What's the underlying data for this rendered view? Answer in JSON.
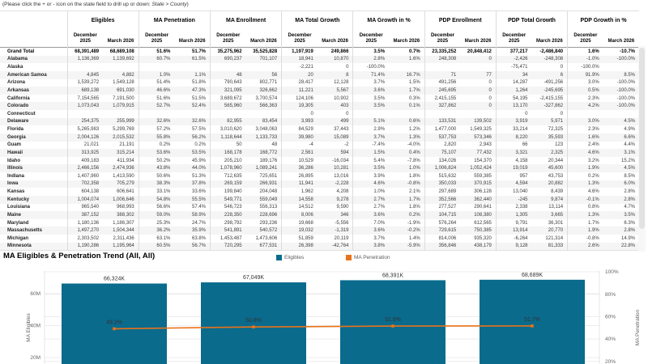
{
  "instruction": {
    "prefix": "(Please click the + or - icon on the state field to drill up or down: ",
    "emphasis": "State > County",
    "suffix": ")"
  },
  "table": {
    "groups": [
      "Eligibles",
      "MA Penetration",
      "MA Enrollment",
      "MA Total Growth",
      "MA Growth in %",
      "PDP Enrollment",
      "PDP Total Growth",
      "PDP Growth in %"
    ],
    "period_columns": [
      "December 2025",
      "March 2026"
    ],
    "rows": [
      {
        "label": "Grand Total",
        "total": true,
        "values": [
          "68,391,489",
          "68,689,108",
          "51.6%",
          "51.7%",
          "35,275,962",
          "35,525,828",
          "1,197,919",
          "249,866",
          "3.5%",
          "0.7%",
          "23,335,252",
          "20,848,412",
          "377,217",
          "-2,486,840",
          "1.6%",
          "-10.7%"
        ]
      },
      {
        "label": "Alabama",
        "values": [
          "1,136,369",
          "1,139,692",
          "60.7%",
          "61.5%",
          "690,237",
          "701,107",
          "18,941",
          "10,870",
          "2.8%",
          "1.6%",
          "248,308",
          "0",
          "-2,426",
          "-248,308",
          "-1.0%",
          "-100.0%"
        ]
      },
      {
        "label": "Alaska",
        "values": [
          "",
          "",
          "",
          "",
          "",
          "",
          "-2,221",
          "0",
          "-100.0%",
          "",
          "",
          "",
          "-75,471",
          "0",
          "-100.0%",
          ""
        ]
      },
      {
        "label": "American Samoa",
        "values": [
          "4,845",
          "4,882",
          "1.0%",
          "1.1%",
          "48",
          "56",
          "20",
          "8",
          "71.4%",
          "16.7%",
          "71",
          "77",
          "34",
          "6",
          "91.9%",
          "8.5%"
        ]
      },
      {
        "label": "Arizona",
        "values": [
          "1,539,272",
          "1,549,128",
          "51.4%",
          "51.8%",
          "790,643",
          "802,771",
          "28,417",
          "12,128",
          "3.7%",
          "1.5%",
          "491,256",
          "0",
          "14,287",
          "-491,256",
          "3.0%",
          "-100.0%"
        ]
      },
      {
        "label": "Arkansas",
        "values": [
          "689,138",
          "691,030",
          "46.6%",
          "47.3%",
          "321,095",
          "326,662",
          "11,221",
          "5,567",
          "3.6%",
          "1.7%",
          "245,695",
          "0",
          "1,264",
          "-245,695",
          "0.5%",
          "-100.0%"
        ]
      },
      {
        "label": "California",
        "values": [
          "7,154,565",
          "7,191,500",
          "51.6%",
          "51.5%",
          "3,689,672",
          "3,700,574",
          "124,106",
          "10,902",
          "3.5%",
          "0.3%",
          "2,415,155",
          "0",
          "54,195",
          "-2,415,155",
          "2.3%",
          "-100.0%"
        ]
      },
      {
        "label": "Colorado",
        "values": [
          "1,073,043",
          "1,079,915",
          "52.7%",
          "52.4%",
          "565,960",
          "566,363",
          "19,305",
          "403",
          "3.5%",
          "0.1%",
          "327,862",
          "0",
          "13,170",
          "-327,862",
          "4.2%",
          "-100.0%"
        ]
      },
      {
        "label": "Connecticut",
        "values": [
          "",
          "",
          "",
          "",
          "",
          "",
          "0",
          "0",
          "",
          "",
          "",
          "",
          "0",
          "0",
          "",
          ""
        ]
      },
      {
        "label": "Delaware",
        "values": [
          "254,375",
          "255,999",
          "32.6%",
          "32.6%",
          "82,955",
          "83,454",
          "3,993",
          "499",
          "5.1%",
          "0.6%",
          "133,531",
          "139,502",
          "3,919",
          "5,971",
          "3.0%",
          "4.5%"
        ]
      },
      {
        "label": "Florida",
        "values": [
          "5,265,983",
          "5,299,769",
          "57.2%",
          "57.5%",
          "3,010,620",
          "3,048,063",
          "84,529",
          "37,443",
          "2.9%",
          "1.2%",
          "1,477,000",
          "1,549,325",
          "33,214",
          "72,325",
          "2.3%",
          "4.9%"
        ]
      },
      {
        "label": "Georgia",
        "values": [
          "2,004,126",
          "2,015,532",
          "55.8%",
          "56.2%",
          "1,118,644",
          "1,133,733",
          "39,980",
          "15,089",
          "3.7%",
          "1.3%",
          "537,753",
          "573,346",
          "8,220",
          "35,593",
          "1.6%",
          "6.6%"
        ]
      },
      {
        "label": "Guam",
        "values": [
          "21,021",
          "21,191",
          "0.2%",
          "0.2%",
          "50",
          "48",
          "-4",
          "-2",
          "-7.4%",
          "-4.0%",
          "2,820",
          "2,943",
          "66",
          "123",
          "2.4%",
          "4.4%"
        ]
      },
      {
        "label": "Hawaii",
        "values": [
          "313,925",
          "315,214",
          "53.6%",
          "53.5%",
          "168,178",
          "168,772",
          "2,561",
          "594",
          "1.5%",
          "0.4%",
          "75,107",
          "77,432",
          "3,321",
          "2,325",
          "4.6%",
          "3.1%"
        ]
      },
      {
        "label": "Idaho",
        "values": [
          "409,183",
          "411,934",
          "50.2%",
          "45.9%",
          "205,210",
          "189,176",
          "10,529",
          "-16,034",
          "5.4%",
          "-7.8%",
          "134,026",
          "154,370",
          "4,158",
          "20,344",
          "3.2%",
          "15.2%"
        ]
      },
      {
        "label": "Illinois",
        "values": [
          "2,466,156",
          "2,474,936",
          "43.8%",
          "44.0%",
          "1,078,960",
          "1,089,241",
          "36,286",
          "10,281",
          "3.5%",
          "1.0%",
          "1,006,824",
          "1,052,424",
          "19,019",
          "45,600",
          "1.9%",
          "4.5%"
        ]
      },
      {
        "label": "Indiana",
        "values": [
          "1,407,960",
          "1,413,590",
          "50.6%",
          "51.3%",
          "712,635",
          "725,651",
          "26,895",
          "13,016",
          "3.9%",
          "1.8%",
          "515,632",
          "559,385",
          "957",
          "43,753",
          "0.2%",
          "8.5%"
        ]
      },
      {
        "label": "Iowa",
        "values": [
          "702,358",
          "705,279",
          "38.3%",
          "37.8%",
          "269,159",
          "266,931",
          "11,941",
          "-2,228",
          "4.6%",
          "-0.8%",
          "350,033",
          "370,915",
          "4,594",
          "20,882",
          "1.3%",
          "6.0%"
        ]
      },
      {
        "label": "Kansas",
        "values": [
          "604,138",
          "606,641",
          "33.1%",
          "33.6%",
          "199,840",
          "204,048",
          "1,962",
          "4,208",
          "1.0%",
          "2.1%",
          "297,689",
          "306,128",
          "13,040",
          "8,439",
          "4.6%",
          "2.8%"
        ]
      },
      {
        "label": "Kentucky",
        "values": [
          "1,004,074",
          "1,006,646",
          "54.8%",
          "55.5%",
          "549,771",
          "559,049",
          "14,558",
          "9,278",
          "2.7%",
          "1.7%",
          "352,566",
          "362,440",
          "-245",
          "9,874",
          "-0.1%",
          "2.8%"
        ]
      },
      {
        "label": "Louisiana",
        "values": [
          "965,540",
          "968,993",
          "56.6%",
          "57.4%",
          "546,723",
          "556,313",
          "14,512",
          "9,590",
          "2.7%",
          "1.8%",
          "277,527",
          "290,641",
          "2,338",
          "13,114",
          "0.8%",
          "4.7%"
        ]
      },
      {
        "label": "Maine",
        "values": [
          "387,152",
          "388,302",
          "59.0%",
          "58.9%",
          "228,350",
          "228,696",
          "8,006",
          "346",
          "3.6%",
          "0.2%",
          "104,715",
          "108,380",
          "1,305",
          "3,665",
          "1.3%",
          "3.5%"
        ]
      },
      {
        "label": "Maryland",
        "values": [
          "1,180,136",
          "1,186,307",
          "25.3%",
          "24.7%",
          "298,792",
          "293,236",
          "19,668",
          "-5,556",
          "7.0%",
          "-1.9%",
          "576,264",
          "612,565",
          "9,791",
          "36,301",
          "1.7%",
          "6.3%"
        ]
      },
      {
        "label": "Massachusetts",
        "values": [
          "1,497,270",
          "1,504,344",
          "36.2%",
          "35.9%",
          "541,891",
          "540,572",
          "19,032",
          "-1,319",
          "3.6%",
          "-0.2%",
          "729,615",
          "750,385",
          "13,914",
          "20,770",
          "1.9%",
          "2.8%"
        ]
      },
      {
        "label": "Michigan",
        "values": [
          "2,303,502",
          "2,311,436",
          "63.1%",
          "63.8%",
          "1,453,487",
          "1,473,606",
          "51,859",
          "20,119",
          "3.7%",
          "1.4%",
          "814,006",
          "935,320",
          "-6,264",
          "121,314",
          "-0.8%",
          "14.9%"
        ]
      },
      {
        "label": "Minnesota",
        "values": [
          "1,190,286",
          "1,195,964",
          "60.5%",
          "56.7%",
          "720,295",
          "677,531",
          "26,398",
          "-42,764",
          "3.8%",
          "-5.9%",
          "356,846",
          "438,179",
          "9,128",
          "81,333",
          "2.6%",
          "22.8%"
        ]
      }
    ]
  },
  "chart": {
    "title": "MA Eligibles & Penetration Trend  (All, All)",
    "legend": [
      {
        "label": "Eligibles",
        "color": "#0a6b8d"
      },
      {
        "label": "MA Penetration",
        "color": "#e8731a"
      }
    ]
  },
  "chart_data": {
    "type": "combo bar+line",
    "title": "MA Eligibles & Penetration Trend  (All, All)",
    "x_points": 4,
    "x_axis_labels_visible": false,
    "series": [
      {
        "name": "Eligibles",
        "type": "bar",
        "axis": "left",
        "color": "#0a6b8d",
        "values_thousands": [
          66324,
          67049,
          68391,
          68689
        ],
        "point_labels": [
          "66,324K",
          "67,049K",
          "68,391K",
          "68,689K"
        ]
      },
      {
        "name": "MA Penetration",
        "type": "line",
        "axis": "right",
        "color": "#e8731a",
        "values_percent": [
          49.2,
          50.8,
          51.6,
          51.7
        ],
        "point_labels": [
          "49.2%",
          "50.8%",
          "51.6%",
          "51.7%"
        ]
      }
    ],
    "ylabel_left": "MA Eligibles",
    "left_axis_ticks": [
      {
        "value_millions": 20,
        "label": "20M"
      },
      {
        "value_millions": 40,
        "label": "40M"
      },
      {
        "value_millions": 60,
        "label": "60M"
      }
    ],
    "ylabel_right": "MA Penetration",
    "right_axis_ticks": [
      {
        "value_percent": 20,
        "label": "20%"
      },
      {
        "value_percent": 40,
        "label": "40%"
      },
      {
        "value_percent": 60,
        "label": "60%"
      },
      {
        "value_percent": 80,
        "label": "80%"
      },
      {
        "value_percent": 100,
        "label": "100%"
      }
    ],
    "legend_position": "top-center",
    "grid": true
  }
}
